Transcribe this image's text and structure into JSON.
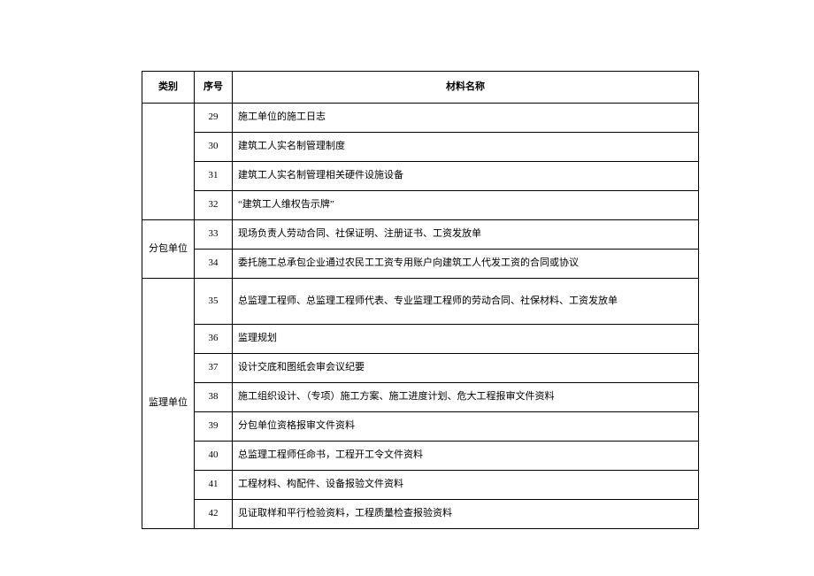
{
  "header": {
    "category": "类别",
    "number": "序号",
    "name": "材料名称"
  },
  "groups": [
    {
      "category": "",
      "rows": [
        {
          "num": "29",
          "name": "施工单位的施工日志"
        },
        {
          "num": "30",
          "name": "建筑工人实名制管理制度"
        },
        {
          "num": "31",
          "name": "建筑工人实名制管理相关硬件设施设备"
        },
        {
          "num": "32",
          "name": "“建筑工人维权告示牌”"
        }
      ]
    },
    {
      "category": "分包单位",
      "rows": [
        {
          "num": "33",
          "name": "现场负责人劳动合同、社保证明、注册证书、工资发放单"
        },
        {
          "num": "34",
          "name": "委托施工总承包企业通过农民工工资专用账户向建筑工人代发工资的合同或协议"
        }
      ]
    },
    {
      "category": "监理单位",
      "rows": [
        {
          "num": "35",
          "name": "总监理工程师、总监理工程师代表、专业监理工程师的劳动合同、社保材料、工资发放单",
          "tall": true
        },
        {
          "num": "36",
          "name": "监理规划"
        },
        {
          "num": "37",
          "name": "设计交底和图纸会审会议纪要"
        },
        {
          "num": "38",
          "name": "施工组织设计、（专项）施工方案、施工进度计划、危大工程报审文件资料"
        },
        {
          "num": "39",
          "name": "分包单位资格报审文件资料"
        },
        {
          "num": "40",
          "name": "总监理工程师任命书，工程开工令文件资料"
        },
        {
          "num": "41",
          "name": "工程材料、构配件、设备报验文件资料"
        },
        {
          "num": "42",
          "name": "见证取样和平行检验资料，工程质量检查报验资料"
        }
      ]
    }
  ]
}
